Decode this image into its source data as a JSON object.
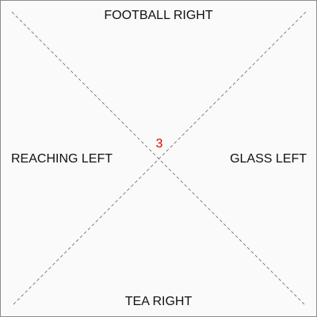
{
  "zones": {
    "top": "FOOTBALL RIGHT",
    "left": "REACHING LEFT",
    "right": "GLASS LEFT",
    "bottom": "TEA RIGHT"
  },
  "center": {
    "value": "3",
    "color": "#e00000"
  },
  "colors": {
    "background": "#fafafa",
    "border": "#8c8c8c",
    "diagonal": "#666666",
    "text": "#111111"
  }
}
